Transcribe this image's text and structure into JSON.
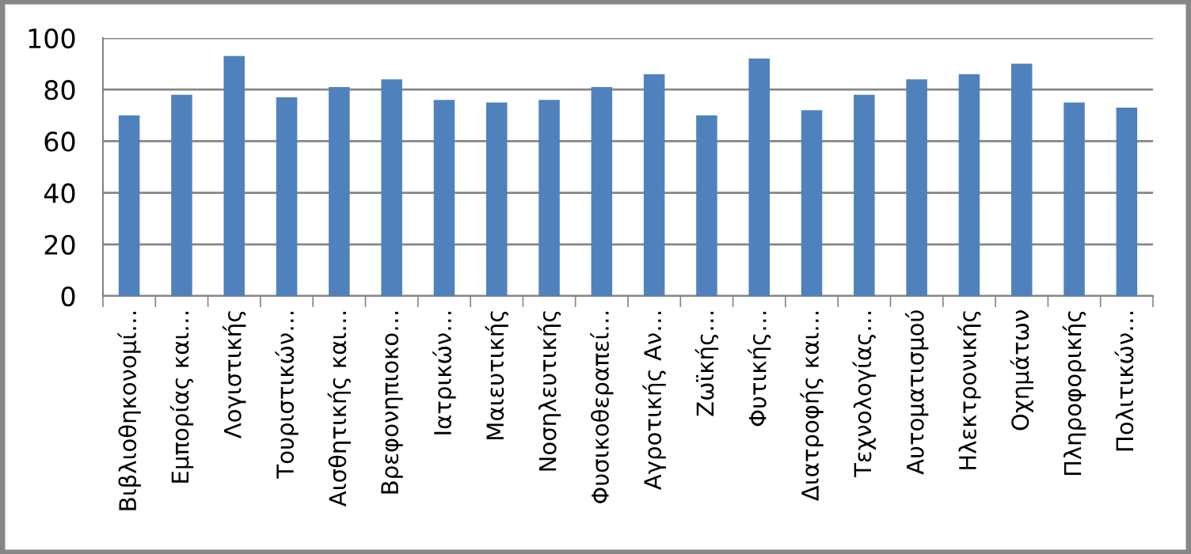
{
  "chart_data": {
    "type": "bar",
    "categories": [
      "Βιβλιοθηκονομί…",
      "Εμπορίας και…",
      "Λογιστικής",
      "Τουριστικών…",
      "Αισθητικής και…",
      "Βρεφονηπιοκο…",
      "Ιατρικών…",
      "Μαιευτικής",
      "Νοσηλευτικής",
      "Φυσικοθεραπεί…",
      "Αγροτικής Αν…",
      "Ζωϊκής…",
      "Φυτικής…",
      "Διατροφής και…",
      "Τεχνολογίας…",
      "Αυτοματισμού",
      "Ηλεκτρονικής",
      "Οχημάτων",
      "Πληροφορικής",
      "Πολιτικών…"
    ],
    "values": [
      70,
      78,
      93,
      77,
      81,
      84,
      76,
      75,
      76,
      81,
      86,
      70,
      92,
      72,
      78,
      84,
      86,
      90,
      75,
      73
    ],
    "color": "#4f81bd",
    "ylim": [
      0,
      100
    ],
    "yticks": [
      0,
      20,
      40,
      60,
      80,
      100
    ],
    "grid": "y",
    "legend": false
  }
}
